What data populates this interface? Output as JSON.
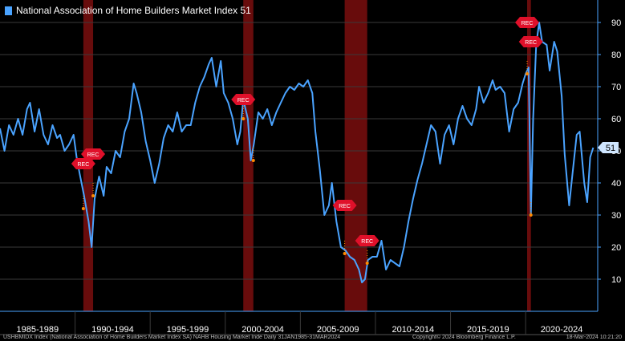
{
  "colors": {
    "line": "#4aa3ff",
    "recession": "#8b1010",
    "rec_flag": "#e0102a",
    "grid": "#3a3a3a",
    "axis": "#4aa3ff",
    "marker": "#ff8a00"
  },
  "legend": {
    "label": "National Association of Home Builders Market Index",
    "value": "51"
  },
  "footer": {
    "source": "USHBMIDX Index (National Association of Home Builders Market Index SA) NAHB Housing Market Inde  Daily 31JAN1985-31MAR2024",
    "copyright": "Copyright© 2024 Bloomberg Finance L.P.",
    "timestamp": "18-Mar-2024 10:21:20"
  },
  "chart_data": {
    "type": "line",
    "title": "National Association of Home Builders Market Index",
    "ylim": [
      0,
      95
    ],
    "xlim": [
      1985.0,
      2024.8
    ],
    "y_ticks": [
      10,
      20,
      30,
      40,
      50,
      60,
      70,
      80,
      90
    ],
    "y_tick_labels": [
      "10",
      "20",
      "30",
      "40",
      "50",
      "60",
      "70",
      "80",
      "90"
    ],
    "x_periods": [
      "1985-1989",
      "1990-1994",
      "1995-1999",
      "2000-2004",
      "2005-2009",
      "2010-2014",
      "2015-2019",
      "2020-2024"
    ],
    "last_value_label": "51",
    "recessions": [
      [
        1990.55,
        1991.2
      ],
      [
        2001.2,
        2001.87
      ],
      [
        2007.95,
        2009.45
      ],
      [
        2020.1,
        2020.35
      ]
    ],
    "rec_flags": [
      {
        "text": "REC",
        "x": 1990.55,
        "y": 46
      },
      {
        "text": "REC",
        "x": 1991.2,
        "y": 49
      },
      {
        "text": "REC",
        "x": 2001.2,
        "y": 66
      },
      {
        "text": "REC",
        "x": 2007.95,
        "y": 33
      },
      {
        "text": "REC",
        "x": 2009.45,
        "y": 22
      },
      {
        "text": "REC",
        "x": 2020.1,
        "y": 90
      },
      {
        "text": "REC",
        "x": 2020.35,
        "y": 84
      }
    ],
    "markers": [
      {
        "x": 1990.55,
        "y": 32
      },
      {
        "x": 1991.2,
        "y": 36
      },
      {
        "x": 2001.2,
        "y": 60
      },
      {
        "x": 2001.87,
        "y": 47
      },
      {
        "x": 2007.95,
        "y": 18
      },
      {
        "x": 2009.45,
        "y": 15
      },
      {
        "x": 2020.1,
        "y": 74
      },
      {
        "x": 2020.35,
        "y": 30
      }
    ],
    "series": [
      {
        "name": "National Association of Home Builders Market Index",
        "points": [
          [
            1985.0,
            57
          ],
          [
            1985.3,
            50
          ],
          [
            1985.6,
            58
          ],
          [
            1985.9,
            55
          ],
          [
            1986.2,
            60
          ],
          [
            1986.5,
            55
          ],
          [
            1986.8,
            63
          ],
          [
            1987.0,
            65
          ],
          [
            1987.3,
            56
          ],
          [
            1987.6,
            63
          ],
          [
            1987.9,
            55
          ],
          [
            1988.2,
            52
          ],
          [
            1988.5,
            58
          ],
          [
            1988.8,
            54
          ],
          [
            1989.0,
            55
          ],
          [
            1989.3,
            50
          ],
          [
            1989.6,
            52
          ],
          [
            1989.9,
            55
          ],
          [
            1990.1,
            48
          ],
          [
            1990.3,
            43
          ],
          [
            1990.6,
            36
          ],
          [
            1990.9,
            28
          ],
          [
            1991.1,
            20
          ],
          [
            1991.3,
            35
          ],
          [
            1991.6,
            42
          ],
          [
            1991.9,
            36
          ],
          [
            1992.1,
            45
          ],
          [
            1992.4,
            43
          ],
          [
            1992.7,
            50
          ],
          [
            1993.0,
            48
          ],
          [
            1993.3,
            56
          ],
          [
            1993.6,
            60
          ],
          [
            1993.9,
            71
          ],
          [
            1994.1,
            68
          ],
          [
            1994.4,
            62
          ],
          [
            1994.7,
            53
          ],
          [
            1995.0,
            47
          ],
          [
            1995.3,
            40
          ],
          [
            1995.6,
            46
          ],
          [
            1995.9,
            54
          ],
          [
            1996.2,
            58
          ],
          [
            1996.5,
            56
          ],
          [
            1996.8,
            62
          ],
          [
            1997.1,
            56
          ],
          [
            1997.4,
            58
          ],
          [
            1997.7,
            58
          ],
          [
            1998.0,
            65
          ],
          [
            1998.3,
            70
          ],
          [
            1998.6,
            73
          ],
          [
            1998.9,
            77
          ],
          [
            1999.1,
            79
          ],
          [
            1999.4,
            70
          ],
          [
            1999.7,
            78
          ],
          [
            1999.9,
            68
          ],
          [
            2000.2,
            65
          ],
          [
            2000.5,
            60
          ],
          [
            2000.8,
            52
          ],
          [
            2001.0,
            56
          ],
          [
            2001.2,
            66
          ],
          [
            2001.5,
            60
          ],
          [
            2001.7,
            47
          ],
          [
            2001.9,
            52
          ],
          [
            2002.2,
            62
          ],
          [
            2002.5,
            60
          ],
          [
            2002.8,
            63
          ],
          [
            2003.1,
            58
          ],
          [
            2003.4,
            62
          ],
          [
            2003.7,
            65
          ],
          [
            2004.0,
            68
          ],
          [
            2004.3,
            70
          ],
          [
            2004.6,
            69
          ],
          [
            2004.9,
            71
          ],
          [
            2005.2,
            70
          ],
          [
            2005.5,
            72
          ],
          [
            2005.8,
            68
          ],
          [
            2006.0,
            56
          ],
          [
            2006.3,
            44
          ],
          [
            2006.6,
            30
          ],
          [
            2006.9,
            33
          ],
          [
            2007.1,
            40
          ],
          [
            2007.4,
            28
          ],
          [
            2007.7,
            20
          ],
          [
            2008.0,
            19
          ],
          [
            2008.3,
            17
          ],
          [
            2008.6,
            16
          ],
          [
            2008.9,
            13
          ],
          [
            2009.1,
            9
          ],
          [
            2009.3,
            10
          ],
          [
            2009.5,
            16
          ],
          [
            2009.8,
            17
          ],
          [
            2010.1,
            17
          ],
          [
            2010.4,
            22
          ],
          [
            2010.7,
            13
          ],
          [
            2011.0,
            16
          ],
          [
            2011.3,
            15
          ],
          [
            2011.6,
            14
          ],
          [
            2011.9,
            20
          ],
          [
            2012.2,
            28
          ],
          [
            2012.5,
            35
          ],
          [
            2012.8,
            41
          ],
          [
            2013.1,
            46
          ],
          [
            2013.4,
            52
          ],
          [
            2013.7,
            58
          ],
          [
            2014.0,
            56
          ],
          [
            2014.3,
            46
          ],
          [
            2014.6,
            55
          ],
          [
            2014.9,
            58
          ],
          [
            2015.2,
            52
          ],
          [
            2015.5,
            60
          ],
          [
            2015.8,
            64
          ],
          [
            2016.1,
            60
          ],
          [
            2016.4,
            58
          ],
          [
            2016.7,
            63
          ],
          [
            2016.9,
            70
          ],
          [
            2017.2,
            65
          ],
          [
            2017.5,
            68
          ],
          [
            2017.8,
            72
          ],
          [
            2018.0,
            69
          ],
          [
            2018.3,
            70
          ],
          [
            2018.6,
            68
          ],
          [
            2018.9,
            56
          ],
          [
            2019.2,
            63
          ],
          [
            2019.5,
            65
          ],
          [
            2019.8,
            71
          ],
          [
            2020.0,
            74
          ],
          [
            2020.2,
            76
          ],
          [
            2020.35,
            30
          ],
          [
            2020.5,
            60
          ],
          [
            2020.7,
            83
          ],
          [
            2020.9,
            90
          ],
          [
            2021.1,
            84
          ],
          [
            2021.4,
            83
          ],
          [
            2021.6,
            75
          ],
          [
            2021.9,
            84
          ],
          [
            2022.1,
            81
          ],
          [
            2022.4,
            67
          ],
          [
            2022.6,
            49
          ],
          [
            2022.9,
            33
          ],
          [
            2023.1,
            42
          ],
          [
            2023.4,
            55
          ],
          [
            2023.6,
            56
          ],
          [
            2023.9,
            40
          ],
          [
            2024.1,
            34
          ],
          [
            2024.3,
            48
          ],
          [
            2024.5,
            51
          ]
        ]
      }
    ]
  }
}
